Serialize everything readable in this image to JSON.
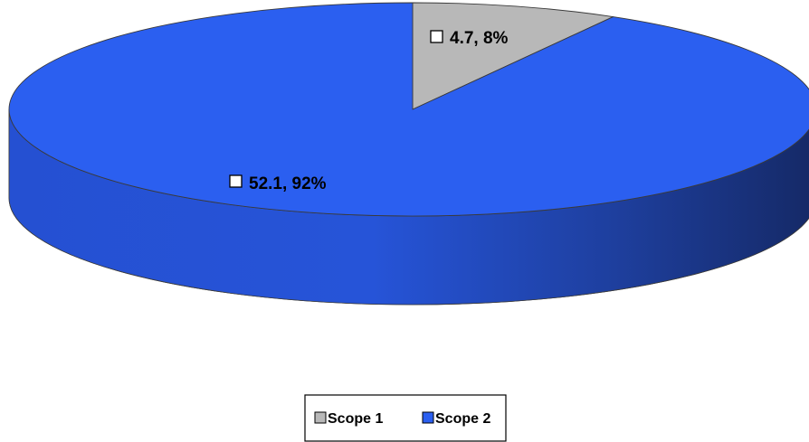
{
  "chart_data": {
    "type": "pie",
    "style": "3d",
    "title": "",
    "categories": [
      "Scope 1",
      "Scope 2"
    ],
    "values": [
      4.7,
      52.1
    ],
    "percentages": [
      8,
      92
    ],
    "data_labels": [
      "4.7, 8%",
      "52.1, 92%"
    ],
    "colors": [
      "#b8b8b8",
      "#2b5ff0"
    ],
    "legend": {
      "position": "bottom",
      "entries": [
        "Scope 1",
        "Scope 2"
      ]
    }
  }
}
